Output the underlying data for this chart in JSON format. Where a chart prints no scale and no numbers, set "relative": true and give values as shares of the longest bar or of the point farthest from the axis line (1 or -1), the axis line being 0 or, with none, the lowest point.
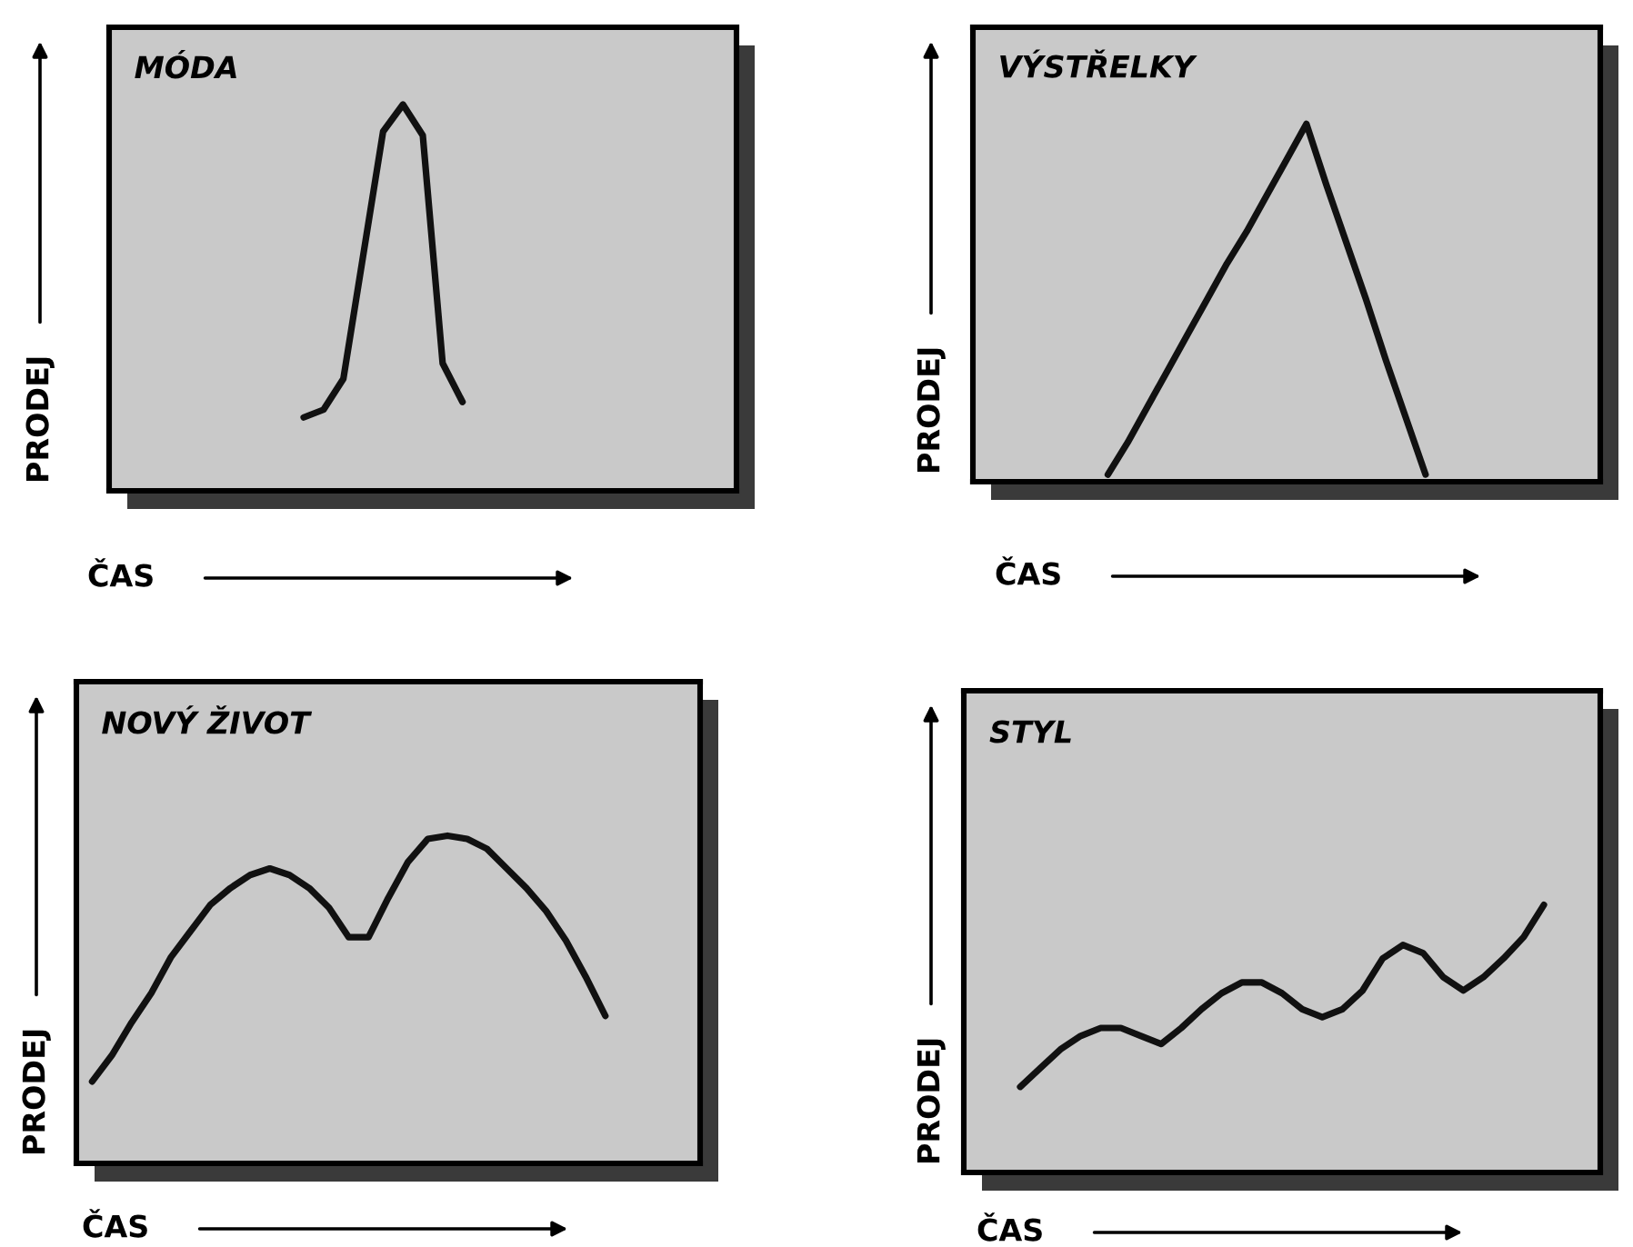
{
  "chart_data": [
    {
      "type": "line",
      "title": "MÓDA",
      "xlabel": "ČAS",
      "ylabel": "PRODEJ",
      "relative": true,
      "line_style": "solid",
      "marker": "none",
      "categories": [
        null,
        null,
        null,
        null,
        null,
        null,
        null,
        null,
        null
      ],
      "series": [
        {
          "color": "#111111",
          "values": [
            0.19,
            0.21,
            0.29,
            0.61,
            0.93,
            1,
            0.92,
            0.33,
            0.23
          ]
        }
      ]
    },
    {
      "type": "line",
      "title": "VÝSTŘELKY",
      "xlabel": "ČAS",
      "ylabel": "PRODEJ",
      "relative": true,
      "line_style": "solid",
      "marker": "none",
      "categories": [
        null,
        null,
        null,
        null,
        null,
        null,
        null,
        null,
        null,
        null,
        null,
        null,
        null,
        null,
        null,
        null,
        null
      ],
      "series": [
        {
          "color": "#111111",
          "values": [
            0.02,
            0.11,
            0.21,
            0.31,
            0.41,
            0.51,
            0.61,
            0.7,
            0.8,
            0.9,
            1,
            0.83,
            0.67,
            0.51,
            0.34,
            0.18,
            0.02
          ]
        }
      ]
    },
    {
      "type": "line",
      "title": "NOVÝ ŽIVOT",
      "xlabel": "ČAS",
      "ylabel": "PRODEJ",
      "relative": true,
      "line_style": "solid",
      "marker": "none",
      "categories": [
        null,
        null,
        null,
        null,
        null,
        null,
        null,
        null,
        null,
        null,
        null,
        null,
        null,
        null,
        null,
        null,
        null,
        null,
        null,
        null,
        null,
        null,
        null,
        null,
        null,
        null,
        null
      ],
      "series": [
        {
          "color": "#111111",
          "values": [
            0.25,
            0.33,
            0.43,
            0.52,
            0.63,
            0.71,
            0.79,
            0.84,
            0.88,
            0.9,
            0.88,
            0.84,
            0.78,
            0.69,
            0.69,
            0.81,
            0.92,
            0.99,
            1,
            0.99,
            0.96,
            0.9,
            0.84,
            0.77,
            0.68,
            0.57,
            0.45
          ]
        }
      ]
    },
    {
      "type": "line",
      "title": "STYL",
      "xlabel": "ČAS",
      "ylabel": "PRODEJ",
      "relative": true,
      "line_style": "solid",
      "marker": "none",
      "categories": [
        null,
        null,
        null,
        null,
        null,
        null,
        null,
        null,
        null,
        null,
        null,
        null,
        null,
        null,
        null,
        null,
        null,
        null,
        null,
        null,
        null,
        null,
        null,
        null,
        null,
        null,
        null
      ],
      "series": [
        {
          "color": "#111111",
          "values": [
            0.32,
            0.39,
            0.46,
            0.51,
            0.54,
            0.54,
            0.51,
            0.48,
            0.54,
            0.61,
            0.67,
            0.71,
            0.71,
            0.67,
            0.61,
            0.58,
            0.61,
            0.68,
            0.8,
            0.85,
            0.82,
            0.73,
            0.68,
            0.73,
            0.8,
            0.88,
            1
          ]
        }
      ]
    }
  ]
}
